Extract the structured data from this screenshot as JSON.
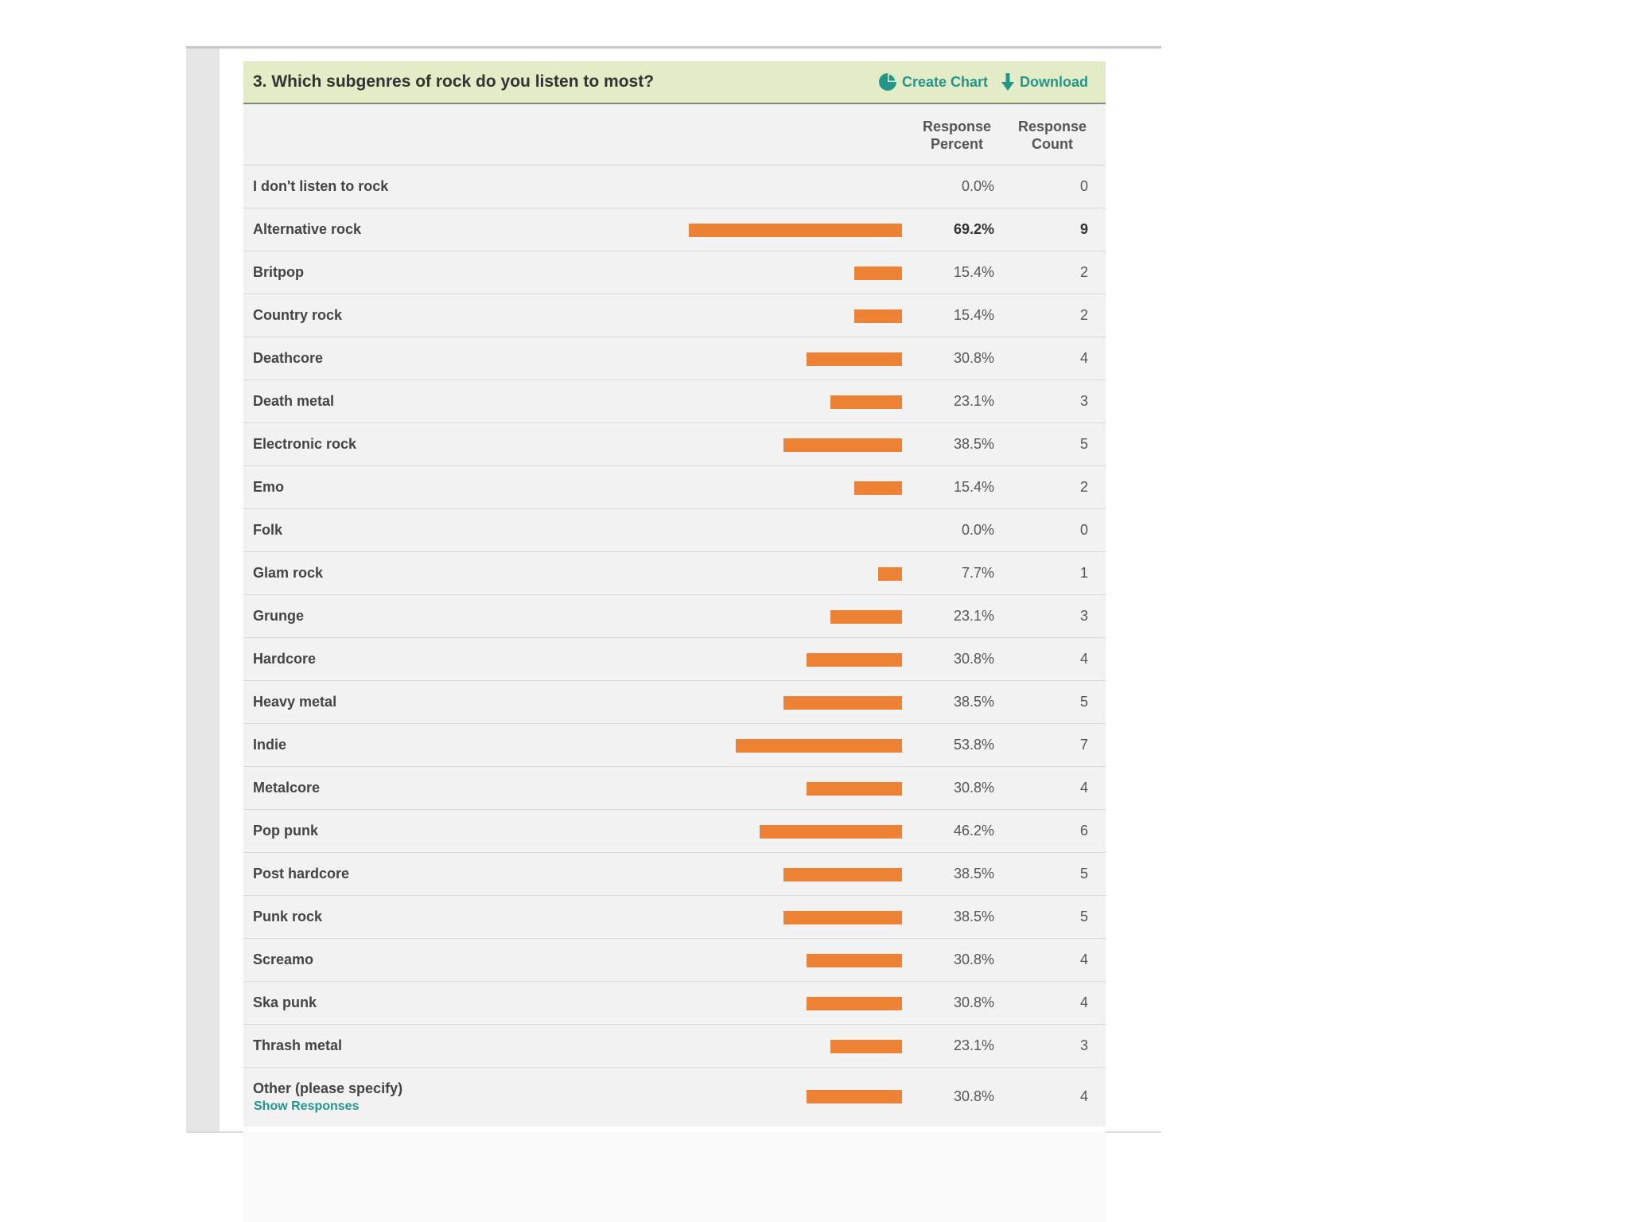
{
  "question": {
    "title": "3. Which subgenres of rock do you listen to most?",
    "create_chart_label": "Create Chart",
    "download_label": "Download",
    "create_chart_icon": "pie-chart-icon",
    "download_icon": "down-arrow-icon"
  },
  "columns": {
    "percent_line1": "Response",
    "percent_line2": "Percent",
    "count_line1": "Response",
    "count_line2": "Count"
  },
  "colors": {
    "bar": "#ee8234",
    "header_bg": "#e3ecc6",
    "link": "#23968c"
  },
  "rows": [
    {
      "label": "I don't listen to rock",
      "percent": "0.0%",
      "count": "0",
      "value": 0.0
    },
    {
      "label": "Alternative rock",
      "percent": "69.2%",
      "count": "9",
      "value": 69.2,
      "highlight": true
    },
    {
      "label": "Britpop",
      "percent": "15.4%",
      "count": "2",
      "value": 15.4
    },
    {
      "label": "Country rock",
      "percent": "15.4%",
      "count": "2",
      "value": 15.4
    },
    {
      "label": "Deathcore",
      "percent": "30.8%",
      "count": "4",
      "value": 30.8
    },
    {
      "label": "Death metal",
      "percent": "23.1%",
      "count": "3",
      "value": 23.1
    },
    {
      "label": "Electronic rock",
      "percent": "38.5%",
      "count": "5",
      "value": 38.5
    },
    {
      "label": "Emo",
      "percent": "15.4%",
      "count": "2",
      "value": 15.4
    },
    {
      "label": "Folk",
      "percent": "0.0%",
      "count": "0",
      "value": 0.0
    },
    {
      "label": "Glam rock",
      "percent": "7.7%",
      "count": "1",
      "value": 7.7
    },
    {
      "label": "Grunge",
      "percent": "23.1%",
      "count": "3",
      "value": 23.1
    },
    {
      "label": "Hardcore",
      "percent": "30.8%",
      "count": "4",
      "value": 30.8
    },
    {
      "label": "Heavy metal",
      "percent": "38.5%",
      "count": "5",
      "value": 38.5
    },
    {
      "label": "Indie",
      "percent": "53.8%",
      "count": "7",
      "value": 53.8
    },
    {
      "label": "Metalcore",
      "percent": "30.8%",
      "count": "4",
      "value": 30.8
    },
    {
      "label": "Pop punk",
      "percent": "46.2%",
      "count": "6",
      "value": 46.2
    },
    {
      "label": "Post hardcore",
      "percent": "38.5%",
      "count": "5",
      "value": 38.5
    },
    {
      "label": "Punk rock",
      "percent": "38.5%",
      "count": "5",
      "value": 38.5
    },
    {
      "label": "Screamo",
      "percent": "30.8%",
      "count": "4",
      "value": 30.8
    },
    {
      "label": "Ska punk",
      "percent": "30.8%",
      "count": "4",
      "value": 30.8
    },
    {
      "label": "Thrash metal",
      "percent": "23.1%",
      "count": "3",
      "value": 23.1
    },
    {
      "label": "Other (please specify)",
      "percent": "30.8%",
      "count": "4",
      "value": 30.8,
      "link": "Show Responses"
    }
  ]
}
